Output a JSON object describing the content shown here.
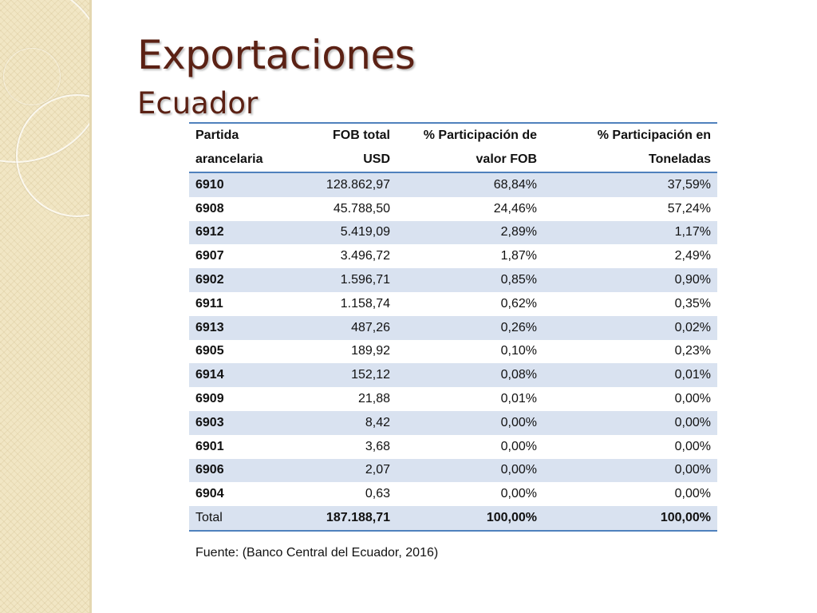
{
  "slide": {
    "title": "Exportaciones",
    "subtitle": "Ecuador"
  },
  "table": {
    "headers": [
      [
        "Partida",
        "FOB total",
        "% Participación de",
        "% Participación en"
      ],
      [
        "arancelaria",
        "USD",
        "valor FOB",
        "Toneladas"
      ]
    ],
    "rows": [
      [
        "6910",
        "128.862,97",
        "68,84%",
        "37,59%"
      ],
      [
        "6908",
        "45.788,50",
        "24,46%",
        "57,24%"
      ],
      [
        "6912",
        "5.419,09",
        "2,89%",
        "1,17%"
      ],
      [
        "6907",
        "3.496,72",
        "1,87%",
        "2,49%"
      ],
      [
        "6902",
        "1.596,71",
        "0,85%",
        "0,90%"
      ],
      [
        "6911",
        "1.158,74",
        "0,62%",
        "0,35%"
      ],
      [
        "6913",
        "487,26",
        "0,26%",
        "0,02%"
      ],
      [
        "6905",
        "189,92",
        "0,10%",
        "0,23%"
      ],
      [
        "6914",
        "152,12",
        "0,08%",
        "0,01%"
      ],
      [
        "6909",
        "21,88",
        "0,01%",
        "0,00%"
      ],
      [
        "6903",
        "8,42",
        "0,00%",
        "0,00%"
      ],
      [
        "6901",
        "3,68",
        "0,00%",
        "0,00%"
      ],
      [
        "6906",
        "2,07",
        "0,00%",
        "0,00%"
      ],
      [
        "6904",
        "0,63",
        "0,00%",
        "0,00%"
      ]
    ],
    "total": [
      "Total",
      "187.188,71",
      "100,00%",
      "100,00%"
    ]
  },
  "source": "Fuente: (Banco Central del Ecuador, 2016)",
  "colors": {
    "title": "#5b2114",
    "table_border": "#4f81bd",
    "row_band": "#d9e2f0",
    "side_band": "#f1e6c4"
  }
}
